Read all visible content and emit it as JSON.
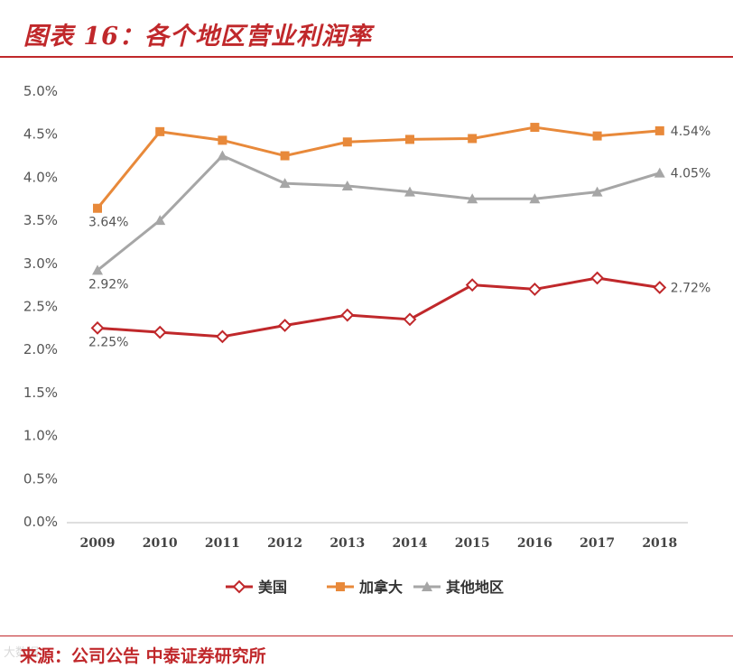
{
  "header": {
    "title": "图表 16：各个地区营业利润率"
  },
  "footer": {
    "source": "来源：公司公告  中泰证券研究所",
    "watermark": "大数据"
  },
  "chart_data": {
    "type": "line",
    "title": "图表 16：各个地区营业利润率",
    "xlabel": "",
    "ylabel": "",
    "ylim": [
      0,
      5.0
    ],
    "ytick_step": 0.5,
    "ytick_labels": [
      "0.0%",
      "0.5%",
      "1.0%",
      "1.5%",
      "2.0%",
      "2.5%",
      "3.0%",
      "3.5%",
      "4.0%",
      "4.5%",
      "5.0%"
    ],
    "categories": [
      "2009",
      "2010",
      "2011",
      "2012",
      "2013",
      "2014",
      "2015",
      "2016",
      "2017",
      "2018"
    ],
    "legend_position": "bottom",
    "series": [
      {
        "name": "美国",
        "color": "#c0282b",
        "marker": "diamond",
        "values": [
          2.25,
          2.2,
          2.15,
          2.28,
          2.4,
          2.35,
          2.75,
          2.7,
          2.83,
          2.72
        ],
        "labels": [
          {
            "index": 0,
            "text": "2.25%",
            "pos": "below"
          },
          {
            "index": 9,
            "text": "2.72%",
            "pos": "right"
          }
        ]
      },
      {
        "name": "加拿大",
        "color": "#e8893a",
        "marker": "square",
        "values": [
          3.64,
          4.53,
          4.43,
          4.25,
          4.41,
          4.44,
          4.45,
          4.58,
          4.48,
          4.54
        ],
        "labels": [
          {
            "index": 0,
            "text": "3.64%",
            "pos": "below"
          },
          {
            "index": 9,
            "text": "4.54%",
            "pos": "right"
          }
        ]
      },
      {
        "name": "其他地区",
        "color": "#a6a6a6",
        "marker": "triangle",
        "values": [
          2.92,
          3.5,
          4.25,
          3.93,
          3.9,
          3.83,
          3.75,
          3.75,
          3.83,
          4.05
        ],
        "labels": [
          {
            "index": 0,
            "text": "2.92%",
            "pos": "below"
          },
          {
            "index": 9,
            "text": "4.05%",
            "pos": "right"
          }
        ]
      }
    ]
  }
}
